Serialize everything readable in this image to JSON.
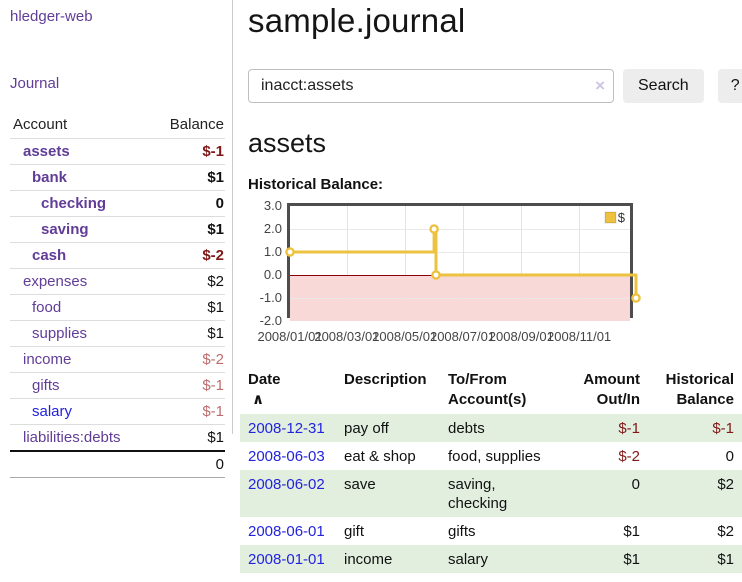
{
  "colors": {
    "link_purple": "#613d98",
    "link_blue": "#2323dd",
    "negative": "#801818",
    "negative_muted": "#bd6d6d",
    "row_stripe_green": "#e2efdf",
    "chart_line": "#EDC240",
    "chart_negative_region": "#f9d8d8",
    "chart_zero_line": "#8b0000",
    "chart_border": "#4d4d4d"
  },
  "sidebar": {
    "app_link": "hledger-web",
    "nav_link": "Journal",
    "accounts_table": {
      "account_header": "Account",
      "balance_header": "Balance",
      "rows": [
        {
          "name": "assets",
          "indent": 0,
          "bold": true,
          "balance": "$-1",
          "balance_style": "negative"
        },
        {
          "name": "bank",
          "indent": 1,
          "bold": true,
          "balance": "$1",
          "balance_style": "normal"
        },
        {
          "name": "checking",
          "indent": 2,
          "bold": true,
          "balance": "0",
          "balance_style": "normal"
        },
        {
          "name": "saving",
          "indent": 2,
          "bold": true,
          "balance": "$1",
          "balance_style": "normal"
        },
        {
          "name": "cash",
          "indent": 1,
          "bold": true,
          "balance": "$-2",
          "balance_style": "negative"
        },
        {
          "name": "expenses",
          "indent": 0,
          "bold": false,
          "balance": "$2",
          "balance_style": "normal"
        },
        {
          "name": "food",
          "indent": 1,
          "bold": false,
          "balance": "$1",
          "balance_style": "normal"
        },
        {
          "name": "supplies",
          "indent": 1,
          "bold": false,
          "balance": "$1",
          "balance_style": "normal"
        },
        {
          "name": "income",
          "indent": 0,
          "bold": false,
          "balance": "$-2",
          "balance_style": "negative-muted"
        },
        {
          "name": "gifts",
          "indent": 1,
          "bold": false,
          "balance": "$-1",
          "balance_style": "negative-muted"
        },
        {
          "name": "salary",
          "indent": 1,
          "bold": false,
          "balance": "$-1",
          "balance_style": "negative-muted",
          "link_style": "unvisited"
        },
        {
          "name": "liabilities:debts",
          "indent": 0,
          "bold": false,
          "balance": "$1",
          "balance_style": "normal"
        }
      ],
      "total": "0"
    }
  },
  "main": {
    "title": "sample.journal",
    "search": {
      "value": "inacct:assets",
      "clear_icon": "×",
      "search_button": "Search",
      "help_button": "?"
    },
    "account_heading": "assets",
    "chart_heading": "Historical Balance:"
  },
  "chart_data": {
    "type": "line",
    "step": true,
    "title": "Historical Balance",
    "series": [
      {
        "name": "$",
        "color": "#EDC240",
        "points": [
          [
            "2008-01-01",
            1
          ],
          [
            "2008-06-01",
            2
          ],
          [
            "2008-06-03",
            0
          ],
          [
            "2008-12-31",
            -1
          ]
        ]
      }
    ],
    "x_range": [
      "2008-01-01",
      "2008-12-31"
    ],
    "x_ticks": [
      "2008/01/01",
      "2008/03/01",
      "2008/05/01",
      "2008/07/01",
      "2008/09/01",
      "2008/11/01"
    ],
    "y_ticks": [
      "3.0",
      "2.0",
      "1.0",
      "0.0",
      "-1.0",
      "-2.0"
    ],
    "ylim": [
      -2,
      3
    ],
    "grid": true,
    "legend": {
      "label": "$",
      "position": "top-right"
    },
    "annotations": {
      "zero_line": true,
      "negative_region_shaded": true
    }
  },
  "register_table": {
    "headers": {
      "date": "Date",
      "sort_icon": "∧",
      "description": "Description",
      "account_l1": "To/From",
      "account_l2": "Account(s)",
      "amount_l1": "Amount",
      "amount_l2": "Out/In",
      "balance_l1": "Historical",
      "balance_l2": "Balance"
    },
    "rows": [
      {
        "date": "2008-12-31",
        "description": "pay off",
        "account": "debts",
        "amount": "$-1",
        "amount_style": "negative",
        "balance": "$-1",
        "balance_style": "negative",
        "stripe": true
      },
      {
        "date": "2008-06-03",
        "description": "eat & shop",
        "account": "food, supplies",
        "amount": "$-2",
        "amount_style": "negative",
        "balance": "0",
        "balance_style": "normal",
        "stripe": false
      },
      {
        "date": "2008-06-02",
        "description": "save",
        "account": "saving, checking",
        "amount": "0",
        "amount_style": "normal",
        "balance": "$2",
        "balance_style": "normal",
        "stripe": true
      },
      {
        "date": "2008-06-01",
        "description": "gift",
        "account": "gifts",
        "amount": "$1",
        "amount_style": "normal",
        "balance": "$2",
        "balance_style": "normal",
        "stripe": false
      },
      {
        "date": "2008-01-01",
        "description": "income",
        "account": "salary",
        "amount": "$1",
        "amount_style": "normal",
        "balance": "$1",
        "balance_style": "normal",
        "stripe": true
      }
    ]
  }
}
